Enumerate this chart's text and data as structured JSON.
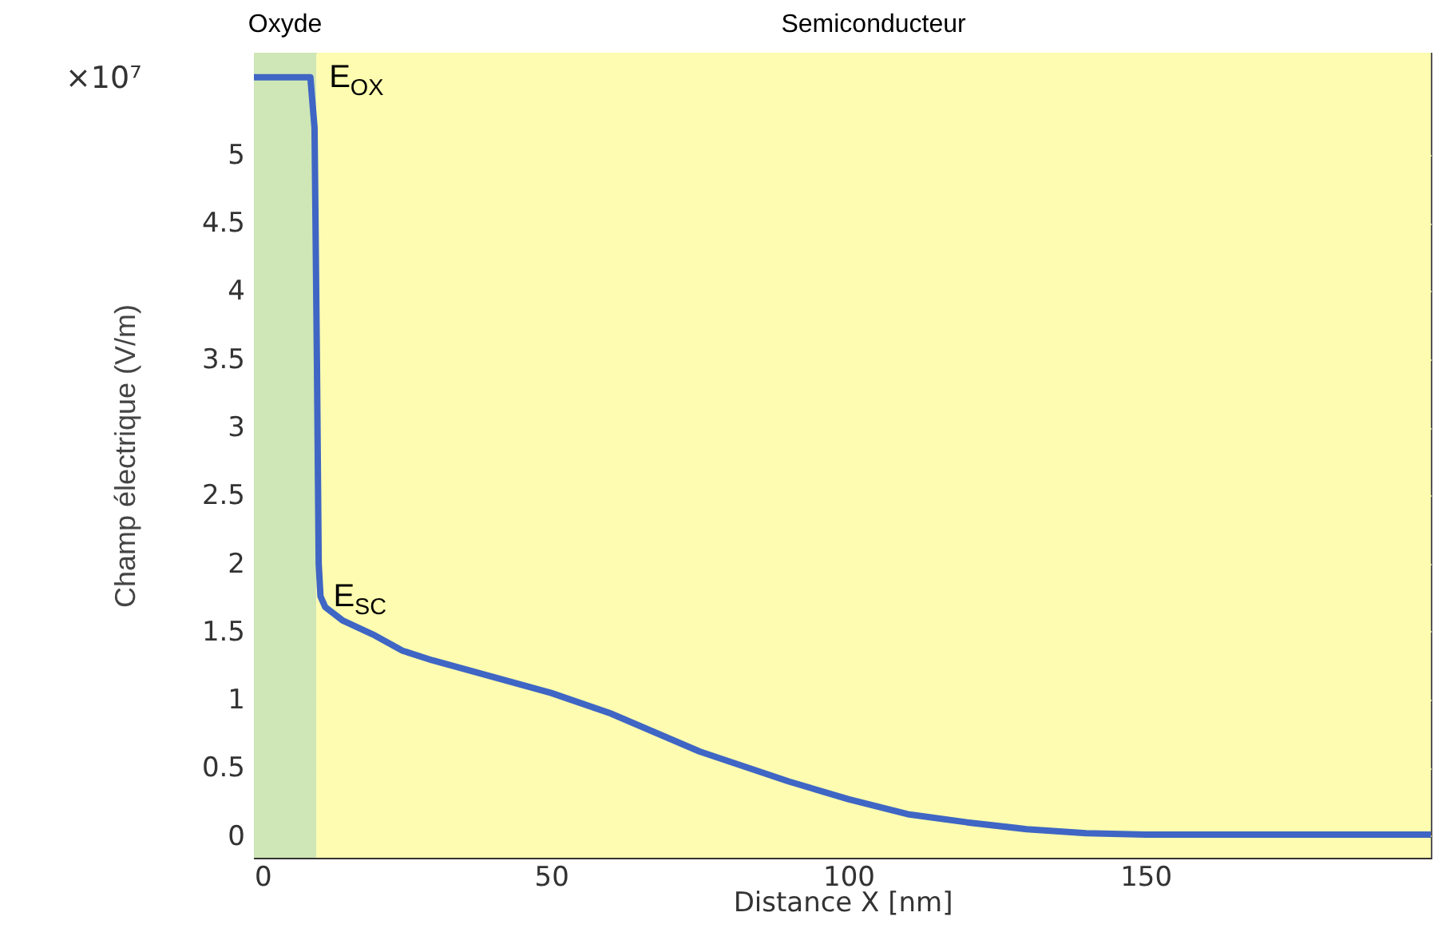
{
  "chart_data": {
    "type": "line",
    "xlabel": "Distance X [nm]",
    "ylabel": "Champ électrique  (V/m)",
    "x": [
      0,
      5,
      9.5,
      10.2,
      10.6,
      10.9,
      11.2,
      12,
      15,
      20,
      25,
      30,
      40,
      50,
      60,
      75,
      90,
      100,
      110,
      120,
      130,
      140,
      150,
      175,
      198
    ],
    "series": [
      {
        "color": "#3f66c4",
        "values": [
          5.57,
          5.57,
          5.57,
          5.2,
          3.5,
          2.0,
          1.76,
          1.68,
          1.58,
          1.48,
          1.36,
          1.29,
          1.17,
          1.05,
          0.9,
          0.62,
          0.4,
          0.27,
          0.16,
          0.1,
          0.05,
          0.02,
          0.01,
          0.01,
          0.01
        ]
      }
    ],
    "xlim": [
      0,
      198
    ],
    "ylim": [
      -0.16,
      5.75
    ],
    "xticks": [
      0,
      50,
      100,
      150
    ],
    "yticks": [
      0,
      0.5,
      1,
      1.5,
      2,
      2.5,
      3,
      3.5,
      4,
      4.5,
      5
    ],
    "grid": true,
    "marker": "none",
    "line_style": "solid",
    "bands": [
      {
        "axis": "x",
        "from": 0,
        "to": 10.5,
        "label": "Oxyde",
        "color": "#cfe6b6"
      },
      {
        "axis": "x",
        "from": 10.5,
        "to": 198,
        "label": "Semiconducteur",
        "color": "#fdfcb0"
      }
    ],
    "annotations": [
      "×10⁷",
      {
        "text": "E$_{OX}$",
        "x": 10.5,
        "y": 5.57
      },
      {
        "text": "E$_{SC}$",
        "x": 11.2,
        "y": 1.76
      }
    ]
  }
}
